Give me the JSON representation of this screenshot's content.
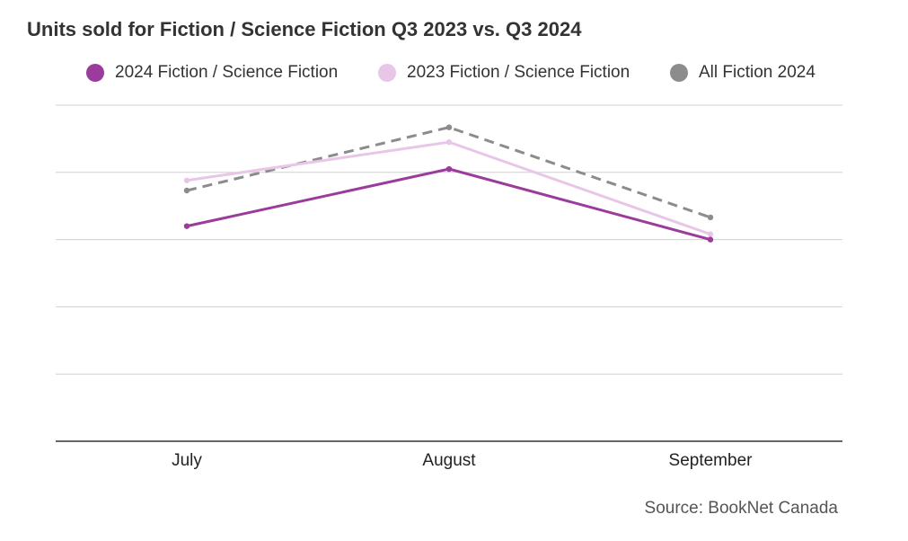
{
  "chart_data": {
    "type": "line",
    "title": "Units sold for Fiction / Science Fiction Q3 2023 vs. Q3 2024",
    "categories": [
      "July",
      "August",
      "September"
    ],
    "series": [
      {
        "name": "2024 Fiction / Science Fiction",
        "values": [
          3.2,
          4.05,
          3.0
        ],
        "color": "#9b3b9b",
        "dashed": false
      },
      {
        "name": "2023 Fiction / Science Fiction",
        "values": [
          3.88,
          4.45,
          3.08
        ],
        "color": "#e8c6e8",
        "dashed": false
      },
      {
        "name": "All Fiction 2024",
        "values": [
          3.73,
          4.67,
          3.33
        ],
        "color": "#8c8c8c",
        "dashed": true
      }
    ],
    "ylim": [
      0,
      5
    ],
    "grid": true,
    "y_tick_labels_shown": false,
    "legend_position": "top",
    "source": "Source: BookNet Canada"
  }
}
